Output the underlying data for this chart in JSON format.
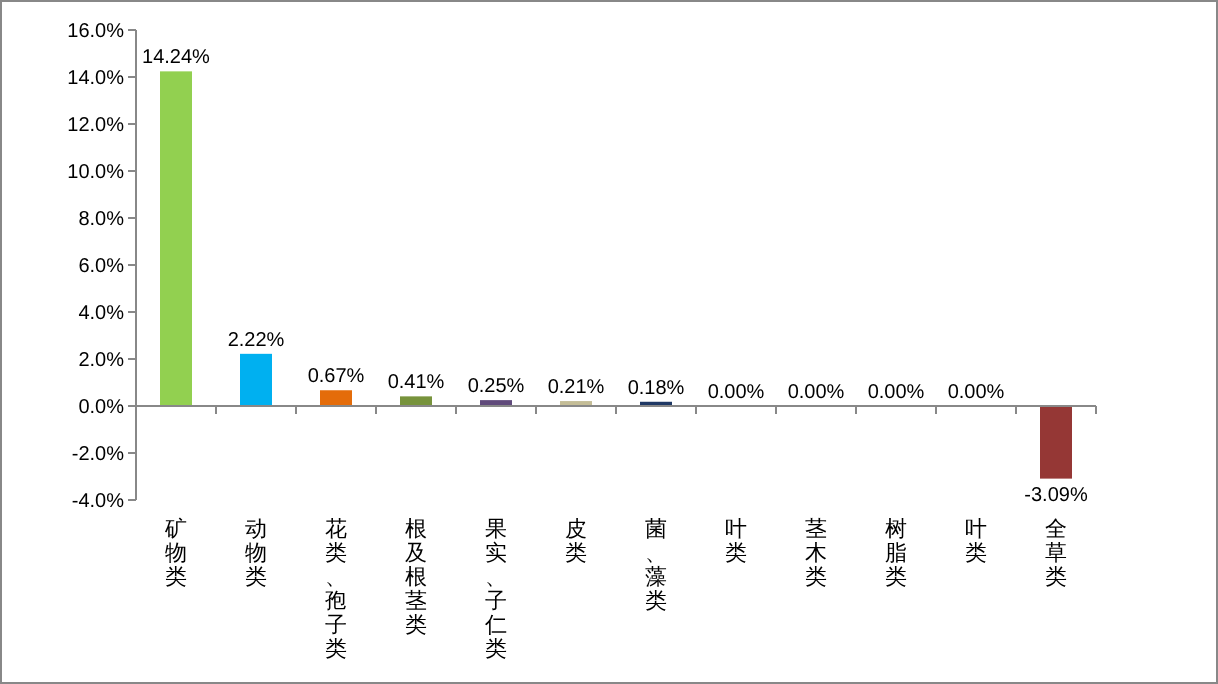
{
  "chart_data": {
    "type": "bar",
    "categories": [
      "矿物类",
      "动物类",
      "花类、孢子类",
      "根及根茎类",
      "果实、子仁类",
      "皮类",
      "菌、藻类",
      "叶类",
      "茎木类",
      "树脂类",
      "叶类",
      "全草类"
    ],
    "values": [
      14.24,
      2.22,
      0.67,
      0.41,
      0.25,
      0.21,
      0.18,
      0.0,
      0.0,
      0.0,
      0.0,
      -3.09
    ],
    "colors": [
      "#92d050",
      "#00b0f0",
      "#e46c0a",
      "#77933c",
      "#604a7b",
      "#c4bd97",
      "#1f3864",
      "#4f81bd",
      "#4f81bd",
      "#4f81bd",
      "#4f81bd",
      "#953735"
    ],
    "value_labels": [
      "14.24%",
      "2.22%",
      "0.67%",
      "0.41%",
      "0.25%",
      "0.21%",
      "0.18%",
      "0.00%",
      "0.00%",
      "0.00%",
      "0.00%",
      "-3.09%"
    ],
    "ylim": [
      -4,
      16
    ],
    "yticks": [
      {
        "value": -4,
        "label": "-4.0%"
      },
      {
        "value": -2,
        "label": "-2.0%"
      },
      {
        "value": 0,
        "label": "0.0%"
      },
      {
        "value": 2,
        "label": "2.0%"
      },
      {
        "value": 4,
        "label": "4.0%"
      },
      {
        "value": 6,
        "label": "6.0%"
      },
      {
        "value": 8,
        "label": "8.0%"
      },
      {
        "value": 10,
        "label": "10.0%"
      },
      {
        "value": 12,
        "label": "12.0%"
      },
      {
        "value": 14,
        "label": "14.0%"
      },
      {
        "value": 16,
        "label": "16.0%"
      }
    ]
  }
}
